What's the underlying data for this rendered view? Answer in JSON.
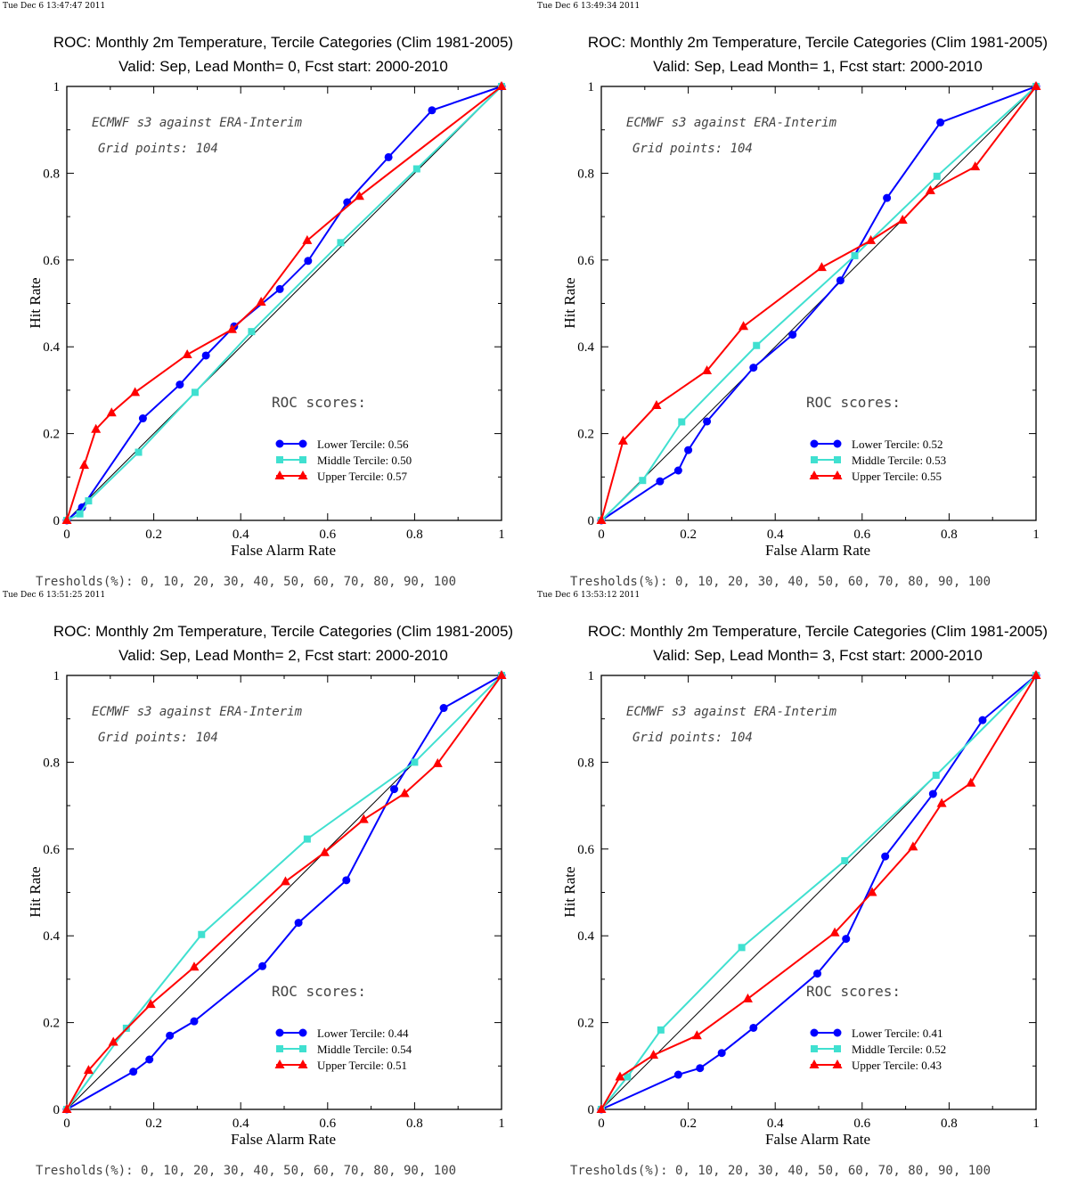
{
  "panels": [
    {
      "timestamp": "Tue Dec  6 13:47:47 2011",
      "title_line1": "ROC: Monthly 2m Temperature, Tercile Categories (Clim 1981-2005)",
      "title_line2": "Valid: Sep, Lead Month= 0, Fcst start: 2000-2010",
      "annotation1": "ECMWF s3 against ERA-Interim",
      "annotation2": "Grid points:  104",
      "scores_heading": "ROC scores:",
      "thresholds_label": "Tresholds(%): 0, 10, 20, 30, 40, 50, 60, 70, 80, 90, 100"
    },
    {
      "timestamp": "Tue Dec  6 13:49:34 2011",
      "title_line1": "ROC: Monthly 2m Temperature, Tercile Categories (Clim 1981-2005)",
      "title_line2": "Valid: Sep, Lead Month= 1, Fcst start: 2000-2010",
      "annotation1": "ECMWF s3 against ERA-Interim",
      "annotation2": "Grid points:  104",
      "scores_heading": "ROC scores:",
      "thresholds_label": "Tresholds(%): 0, 10, 20, 30, 40, 50, 60, 70, 80, 90, 100"
    },
    {
      "timestamp": "Tue Dec  6 13:51:25 2011",
      "title_line1": "ROC: Monthly 2m Temperature, Tercile Categories (Clim 1981-2005)",
      "title_line2": "Valid: Sep, Lead Month= 2, Fcst start: 2000-2010",
      "annotation1": "ECMWF s3 against ERA-Interim",
      "annotation2": "Grid points:  104",
      "scores_heading": "ROC scores:",
      "thresholds_label": "Tresholds(%): 0, 10, 20, 30, 40, 50, 60, 70, 80, 90, 100"
    },
    {
      "timestamp": "Tue Dec  6 13:53:12 2011",
      "title_line1": "ROC: Monthly 2m Temperature, Tercile Categories (Clim 1981-2005)",
      "title_line2": "Valid: Sep, Lead Month= 3, Fcst start: 2000-2010",
      "annotation1": "ECMWF s3 against ERA-Interim",
      "annotation2": "Grid points:  104",
      "scores_heading": "ROC scores:",
      "thresholds_label": "Tresholds(%): 0, 10, 20, 30, 40, 50, 60, 70, 80, 90, 100"
    }
  ],
  "chart_data": [
    {
      "type": "line",
      "xlabel": "False Alarm Rate",
      "ylabel": "Hit Rate",
      "xlim": [
        0,
        1
      ],
      "ylim": [
        0,
        1
      ],
      "xticks": [
        "0",
        "0.2",
        "0.4",
        "0.6",
        "0.8",
        "1"
      ],
      "yticks": [
        "0",
        "0.2",
        "0.4",
        "0.6",
        "0.8",
        "1"
      ],
      "legend_position": "bottom-right",
      "series": [
        {
          "name": "Lower Tercile: 0.56",
          "color": "#0000ff",
          "marker": "circle",
          "x": [
            0,
            0.035,
            0.175,
            0.26,
            0.32,
            0.385,
            0.49,
            0.555,
            0.645,
            0.74,
            0.84,
            1
          ],
          "y": [
            0,
            0.03,
            0.235,
            0.313,
            0.38,
            0.447,
            0.533,
            0.598,
            0.733,
            0.837,
            0.945,
            1
          ]
        },
        {
          "name": "Middle Tercile: 0.50",
          "color": "#40e0d0",
          "marker": "square",
          "x": [
            0,
            0.03,
            0.05,
            0.165,
            0.295,
            0.425,
            0.63,
            0.805,
            1
          ],
          "y": [
            0,
            0.015,
            0.045,
            0.157,
            0.295,
            0.435,
            0.64,
            0.81,
            1
          ]
        },
        {
          "name": "Upper Tercile: 0.57",
          "color": "#ff0000",
          "marker": "triangle",
          "x": [
            0,
            0.04,
            0.067,
            0.103,
            0.157,
            0.277,
            0.38,
            0.447,
            0.553,
            0.673,
            1
          ],
          "y": [
            0,
            0.127,
            0.21,
            0.248,
            0.295,
            0.382,
            0.44,
            0.503,
            0.645,
            0.747,
            1
          ]
        }
      ]
    },
    {
      "type": "line",
      "xlabel": "False Alarm Rate",
      "ylabel": "Hit Rate",
      "xlim": [
        0,
        1
      ],
      "ylim": [
        0,
        1
      ],
      "xticks": [
        "0",
        "0.2",
        "0.4",
        "0.6",
        "0.8",
        "1"
      ],
      "yticks": [
        "0",
        "0.2",
        "0.4",
        "0.6",
        "0.8",
        "1"
      ],
      "legend_position": "bottom-right",
      "series": [
        {
          "name": "Lower Tercile: 0.52",
          "color": "#0000ff",
          "marker": "circle",
          "x": [
            0,
            0.135,
            0.177,
            0.2,
            0.243,
            0.35,
            0.44,
            0.55,
            0.657,
            0.78,
            1
          ],
          "y": [
            0,
            0.09,
            0.115,
            0.162,
            0.228,
            0.352,
            0.428,
            0.553,
            0.743,
            0.917,
            1
          ]
        },
        {
          "name": "Middle Tercile: 0.53",
          "color": "#40e0d0",
          "marker": "square",
          "x": [
            0,
            0.095,
            0.185,
            0.357,
            0.583,
            0.772,
            1
          ],
          "y": [
            0,
            0.092,
            0.227,
            0.403,
            0.61,
            0.793,
            1
          ]
        },
        {
          "name": "Upper Tercile: 0.55",
          "color": "#ff0000",
          "marker": "triangle",
          "x": [
            0,
            0.05,
            0.127,
            0.243,
            0.327,
            0.507,
            0.62,
            0.693,
            0.757,
            0.86,
            1
          ],
          "y": [
            0,
            0.183,
            0.265,
            0.345,
            0.447,
            0.583,
            0.645,
            0.692,
            0.76,
            0.815,
            1
          ]
        }
      ]
    },
    {
      "type": "line",
      "xlabel": "False Alarm Rate",
      "ylabel": "Hit Rate",
      "xlim": [
        0,
        1
      ],
      "ylim": [
        0,
        1
      ],
      "xticks": [
        "0",
        "0.2",
        "0.4",
        "0.6",
        "0.8",
        "1"
      ],
      "yticks": [
        "0",
        "0.2",
        "0.4",
        "0.6",
        "0.8",
        "1"
      ],
      "legend_position": "bottom-right",
      "series": [
        {
          "name": "Lower Tercile: 0.44",
          "color": "#0000ff",
          "marker": "circle",
          "x": [
            0,
            0.153,
            0.19,
            0.237,
            0.293,
            0.45,
            0.533,
            0.643,
            0.753,
            0.867,
            1
          ],
          "y": [
            0,
            0.087,
            0.115,
            0.17,
            0.203,
            0.33,
            0.43,
            0.528,
            0.738,
            0.925,
            1
          ]
        },
        {
          "name": "Middle Tercile: 0.54",
          "color": "#40e0d0",
          "marker": "square",
          "x": [
            0,
            0.137,
            0.31,
            0.553,
            0.8,
            1
          ],
          "y": [
            0,
            0.187,
            0.403,
            0.623,
            0.8,
            1
          ]
        },
        {
          "name": "Upper Tercile: 0.51",
          "color": "#ff0000",
          "marker": "triangle",
          "x": [
            0,
            0.05,
            0.107,
            0.193,
            0.293,
            0.503,
            0.593,
            0.683,
            0.777,
            0.853,
            1
          ],
          "y": [
            0,
            0.09,
            0.155,
            0.242,
            0.328,
            0.525,
            0.592,
            0.668,
            0.728,
            0.797,
            1
          ]
        }
      ]
    },
    {
      "type": "line",
      "xlabel": "False Alarm Rate",
      "ylabel": "Hit Rate",
      "xlim": [
        0,
        1
      ],
      "ylim": [
        0,
        1
      ],
      "xticks": [
        "0",
        "0.2",
        "0.4",
        "0.6",
        "0.8",
        "1"
      ],
      "yticks": [
        "0",
        "0.2",
        "0.4",
        "0.6",
        "0.8",
        "1"
      ],
      "legend_position": "bottom-right",
      "series": [
        {
          "name": "Lower Tercile: 0.41",
          "color": "#0000ff",
          "marker": "circle",
          "x": [
            0,
            0.177,
            0.227,
            0.277,
            0.35,
            0.497,
            0.563,
            0.653,
            0.763,
            0.877,
            1
          ],
          "y": [
            0,
            0.08,
            0.095,
            0.13,
            0.188,
            0.313,
            0.393,
            0.583,
            0.727,
            0.897,
            1
          ]
        },
        {
          "name": "Middle Tercile: 0.52",
          "color": "#40e0d0",
          "marker": "square",
          "x": [
            0,
            0.06,
            0.137,
            0.323,
            0.56,
            0.77,
            1
          ],
          "y": [
            0,
            0.075,
            0.183,
            0.373,
            0.573,
            0.77,
            1
          ]
        },
        {
          "name": "Upper Tercile: 0.43",
          "color": "#ff0000",
          "marker": "triangle",
          "x": [
            0,
            0.043,
            0.12,
            0.22,
            0.337,
            0.537,
            0.623,
            0.717,
            0.783,
            0.85,
            1
          ],
          "y": [
            0,
            0.075,
            0.125,
            0.17,
            0.255,
            0.407,
            0.5,
            0.605,
            0.705,
            0.752,
            1
          ]
        }
      ]
    }
  ]
}
